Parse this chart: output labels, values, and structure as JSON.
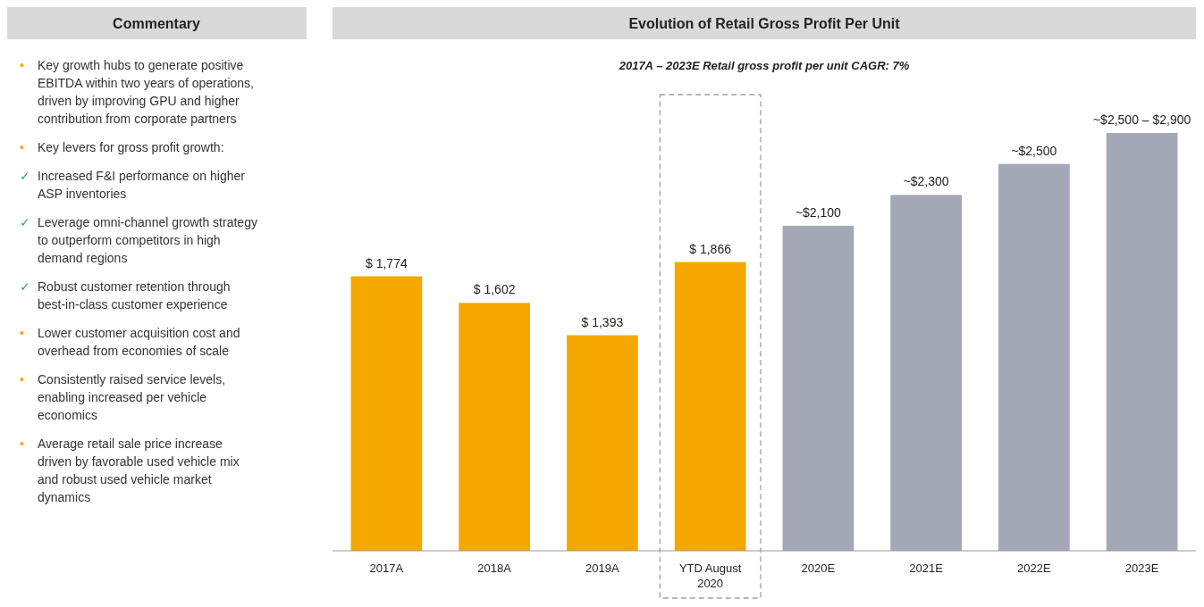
{
  "chart_data": [
    {
      "type": "other",
      "title": "Commentary",
      "annotations": [
        "• Key growth hubs to generate positive EBITDA within two years of operations, driven by improving GPU and higher contribution from corporate partners",
        "• Key levers for gross profit growth:",
        "✓ Increased F&I performance on higher ASP inventories",
        "✓ Leverage omni-channel growth strategy to outperform competitors in high demand regions",
        "✓ Robust customer retention through best-in-class customer experience",
        "• Lower customer acquisition cost and overhead from economies of scale",
        "• Consistently raised service levels, enabling increased per vehicle economics",
        "• Average retail sale price increase driven by favorable used vehicle mix and robust used vehicle market dynamics"
      ],
      "colors": [
        "#f5a800",
        "#f5a800",
        "#3aa655",
        "#3aa655",
        "#3aa655",
        "#f5a800",
        "#f5a800",
        "#f5a800"
      ]
    },
    {
      "type": "bar",
      "title": "Evolution of Retail Gross Profit Per Unit",
      "subtitle": "2017A – 2023E Retail gross profit per unit CAGR: 7%",
      "categories": [
        "2017A",
        "2018A",
        "2019A",
        "YTD August 2020",
        "2020E",
        "2021E",
        "2022E",
        "2023E"
      ],
      "values": [
        1774,
        1602,
        1393,
        1866,
        2100,
        2300,
        2500,
        2700
      ],
      "value_labels": [
        "$ 1,774",
        "$ 1,602",
        "$ 1,393",
        "$ 1,866",
        "~$2,100",
        "~$2,300",
        "~$2,500",
        "~$2,500 – $2,900"
      ],
      "colors": [
        "#f5a800",
        "#f5a800",
        "#f5a800",
        "#f5a800",
        "#a4a7b5",
        "#a4a7b5",
        "#a4a7b5",
        "#a4a7b5"
      ]
    }
  ]
}
